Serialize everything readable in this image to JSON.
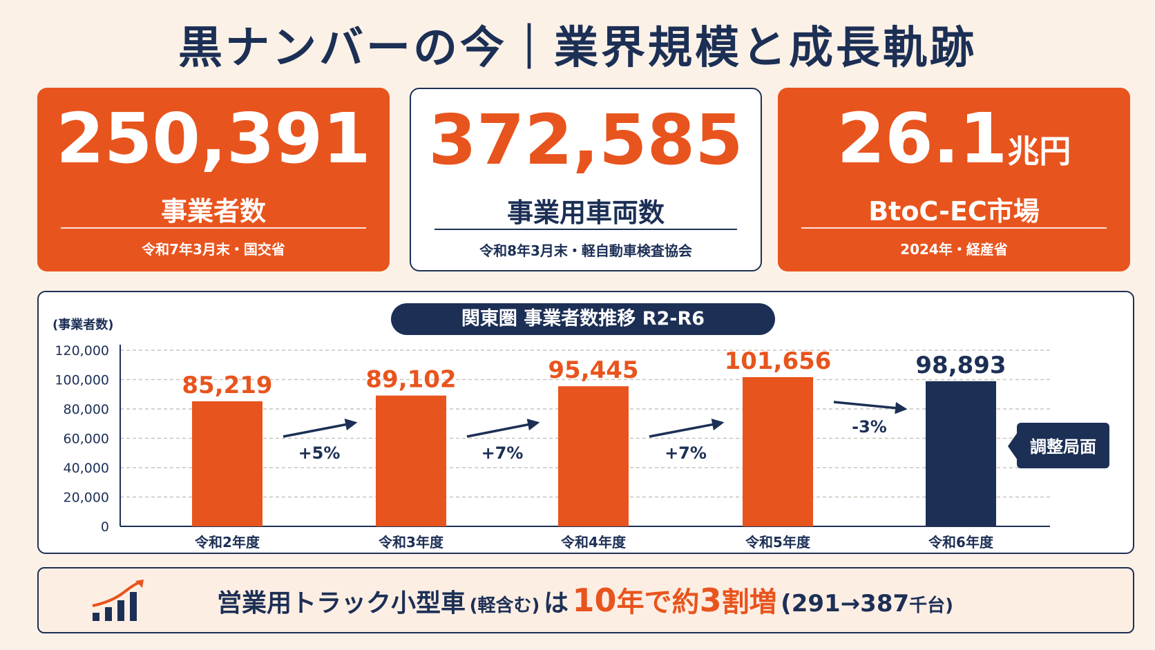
{
  "title": "黒ナンバーの今｜業界規模と成長軌跡",
  "stats": [
    {
      "value": "250,391",
      "unit": "",
      "label": "事業者数",
      "source": "令和7年3月末・国交省"
    },
    {
      "value": "372,585",
      "unit": "",
      "label": "事業用車両数",
      "source": "令和8年3月末・軽自動車検査協会"
    },
    {
      "value": "26.1",
      "unit": "兆円",
      "label": "BtoC-EC市場",
      "source": "2024年・経産省"
    }
  ],
  "chart_data": {
    "type": "bar",
    "title": "関東圏 事業者数推移 R2-R6",
    "ylabel": "(事業者数)",
    "categories": [
      "令和2年度",
      "令和3年度",
      "令和4年度",
      "令和5年度",
      "令和6年度"
    ],
    "values": [
      85219,
      89102,
      95445,
      101656,
      98893
    ],
    "value_labels": [
      "85,219",
      "89,102",
      "95,445",
      "101,656",
      "98,893"
    ],
    "ylim": [
      0,
      120000
    ],
    "yticks": [
      0,
      20000,
      40000,
      60000,
      80000,
      100000,
      120000
    ],
    "ytick_labels": [
      "0",
      "20,000",
      "40,000",
      "60,000",
      "80,000",
      "100,000",
      "120,000"
    ],
    "grid": true,
    "growth_labels": [
      "+5%",
      "+7%",
      "+7%",
      "-3%"
    ],
    "callout": "調整局面",
    "colors": {
      "bar": "#e8541d",
      "highlight": "#1c2f55"
    }
  },
  "bottom": {
    "icon": "growth-chart-icon",
    "part1": "営業用トラック小型車",
    "paren": "(軽含む)",
    "part2": "は",
    "highlight1": "10",
    "highlight_mid": "年で約",
    "highlight2": "3",
    "highlight3": "割増",
    "detail": "(291→387",
    "detail_unit": "千台)"
  },
  "colors": {
    "accent": "#e8541d",
    "navy": "#1c2f55",
    "background": "#fbf1e6"
  }
}
